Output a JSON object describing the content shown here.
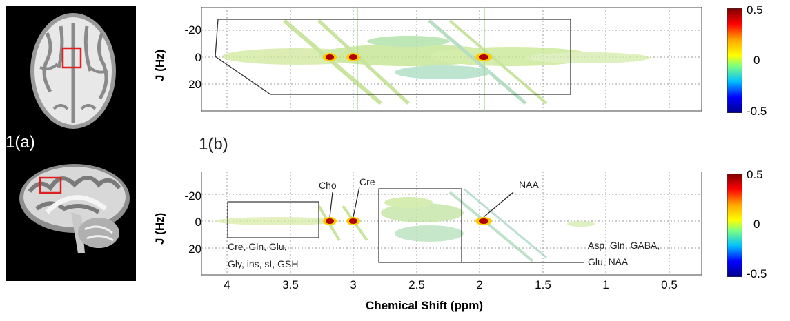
{
  "panels": {
    "a_label": "1(a)",
    "b_label": "1(b)"
  },
  "top_plot": {
    "ylabel": "J (Hz)",
    "yticks": [
      "-20",
      "0",
      "20"
    ]
  },
  "bottom_plot": {
    "ylabel": "J (Hz)",
    "yticks": [
      "-20",
      "0",
      "20"
    ],
    "xlabel": "Chemical Shift (ppm)",
    "xticks": [
      "4",
      "3.5",
      "3",
      "2.5",
      "2",
      "1.5",
      "1",
      "0.5"
    ],
    "annotations": {
      "cho": "Cho",
      "cre": "Cre",
      "naa": "NAA",
      "box1_line1": "Cre, Gln, Glu,",
      "box1_line2": "Gly, ins, sI, GSH",
      "box2_line1": "Asp, Gln, GABA,",
      "box2_line2": "Glu, NAA"
    }
  },
  "colorbar": {
    "ticks": [
      "0.5",
      "0",
      "-0.5"
    ],
    "colors": [
      "#8b0000",
      "#ff0000",
      "#ffa500",
      "#ffff00",
      "#7fff7f",
      "#00bfff",
      "#0000ff",
      "#00008b"
    ]
  },
  "chart_data": [
    {
      "type": "heatmap",
      "title": "",
      "xlabel": "",
      "ylabel": "J (Hz)",
      "xlim": [
        4.2,
        0.2
      ],
      "ylim": [
        -38,
        38
      ],
      "colorscale_range": [
        -0.5,
        0.5
      ],
      "peaks": [
        {
          "ppm": 3.2,
          "J": 0,
          "intensity": 0.5
        },
        {
          "ppm": 3.03,
          "J": 0,
          "intensity": 0.5
        },
        {
          "ppm": 2.01,
          "J": 0,
          "intensity": 0.5
        }
      ]
    },
    {
      "type": "heatmap",
      "title": "",
      "xlabel": "Chemical Shift (ppm)",
      "ylabel": "J (Hz)",
      "xlim": [
        4.2,
        0.2
      ],
      "ylim": [
        -38,
        38
      ],
      "colorscale_range": [
        -0.5,
        0.5
      ],
      "peaks": [
        {
          "ppm": 3.2,
          "J": 0,
          "intensity": 0.5,
          "label": "Cho"
        },
        {
          "ppm": 3.03,
          "J": 0,
          "intensity": 0.5,
          "label": "Cre"
        },
        {
          "ppm": 2.01,
          "J": 0,
          "intensity": 0.5,
          "label": "NAA"
        }
      ]
    }
  ]
}
